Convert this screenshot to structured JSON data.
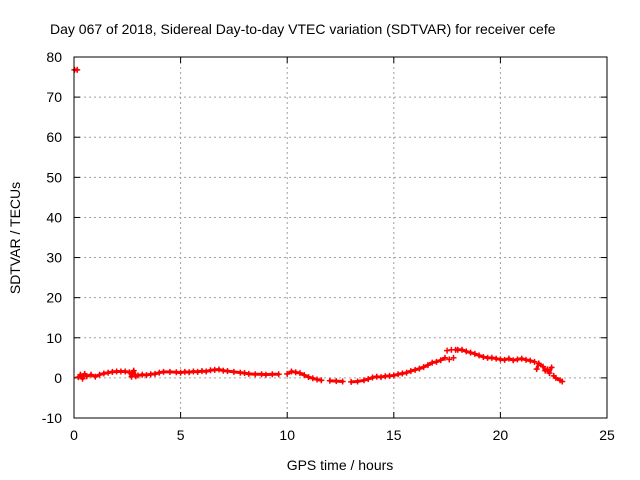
{
  "chart_data": {
    "type": "scatter",
    "title": "Day 067 of 2018, Sidereal Day-to-day VTEC variation (SDTVAR) for receiver cefe",
    "xlabel": "GPS time / hours",
    "ylabel": "SDTVAR / TECUs",
    "xlim": [
      0,
      25
    ],
    "ylim": [
      -10,
      80
    ],
    "grid": true,
    "x_ticks": [
      0,
      5,
      10,
      15,
      20,
      25
    ],
    "y_ticks": [
      -10,
      0,
      10,
      20,
      30,
      40,
      50,
      60,
      70,
      80
    ],
    "x_tick_labels": [
      "0",
      "5",
      "10",
      "15",
      "20",
      "25"
    ],
    "y_tick_labels": [
      "-10",
      "0",
      "10",
      "20",
      "30",
      "40",
      "50",
      "60",
      "70",
      "80"
    ],
    "series_color": "#ff0000",
    "series": [
      {
        "name": "SDTVAR",
        "points": [
          [
            0.02,
            76.8
          ],
          [
            0.15,
            76.8
          ],
          [
            0.2,
            0.2
          ],
          [
            0.3,
            0.8
          ],
          [
            0.4,
            -0.2
          ],
          [
            0.5,
            1.0
          ],
          [
            0.6,
            0.4
          ],
          [
            0.8,
            0.8
          ],
          [
            1.0,
            0.3
          ],
          [
            1.2,
            0.8
          ],
          [
            1.4,
            1.1
          ],
          [
            1.6,
            1.3
          ],
          [
            1.8,
            1.5
          ],
          [
            2.0,
            1.6
          ],
          [
            2.2,
            1.6
          ],
          [
            2.4,
            1.6
          ],
          [
            2.6,
            1.4
          ],
          [
            2.7,
            0.3
          ],
          [
            2.8,
            1.8
          ],
          [
            2.9,
            0.4
          ],
          [
            3.0,
            0.6
          ],
          [
            3.2,
            0.8
          ],
          [
            3.4,
            0.7
          ],
          [
            3.6,
            0.9
          ],
          [
            3.8,
            1.0
          ],
          [
            4.0,
            1.3
          ],
          [
            4.2,
            1.5
          ],
          [
            4.5,
            1.5
          ],
          [
            4.8,
            1.4
          ],
          [
            5.0,
            1.3
          ],
          [
            5.2,
            1.5
          ],
          [
            5.4,
            1.4
          ],
          [
            5.6,
            1.6
          ],
          [
            5.8,
            1.5
          ],
          [
            6.0,
            1.7
          ],
          [
            6.2,
            1.6
          ],
          [
            6.4,
            1.9
          ],
          [
            6.6,
            2.0
          ],
          [
            6.8,
            2.1
          ],
          [
            7.0,
            1.8
          ],
          [
            7.2,
            1.7
          ],
          [
            7.5,
            1.5
          ],
          [
            7.8,
            1.3
          ],
          [
            8.0,
            1.2
          ],
          [
            8.2,
            1.0
          ],
          [
            8.5,
            0.9
          ],
          [
            8.8,
            0.9
          ],
          [
            9.0,
            0.8
          ],
          [
            9.3,
            0.9
          ],
          [
            9.6,
            0.9
          ],
          [
            10.0,
            1.0
          ],
          [
            10.2,
            1.6
          ],
          [
            10.4,
            1.4
          ],
          [
            10.6,
            1.2
          ],
          [
            10.8,
            0.7
          ],
          [
            11.0,
            0.2
          ],
          [
            11.2,
            -0.1
          ],
          [
            11.4,
            -0.4
          ],
          [
            11.6,
            -0.6
          ],
          [
            12.0,
            -0.7
          ],
          [
            12.3,
            -0.8
          ],
          [
            12.6,
            -0.9
          ],
          [
            13.0,
            -1.0
          ],
          [
            13.3,
            -0.9
          ],
          [
            13.6,
            -0.6
          ],
          [
            13.8,
            -0.3
          ],
          [
            14.0,
            0.1
          ],
          [
            14.2,
            0.3
          ],
          [
            14.4,
            0.2
          ],
          [
            14.6,
            0.4
          ],
          [
            14.8,
            0.5
          ],
          [
            15.0,
            0.6
          ],
          [
            15.2,
            0.9
          ],
          [
            15.4,
            1.1
          ],
          [
            15.6,
            1.3
          ],
          [
            15.8,
            1.7
          ],
          [
            16.0,
            2.0
          ],
          [
            16.2,
            2.3
          ],
          [
            16.4,
            2.7
          ],
          [
            16.6,
            3.2
          ],
          [
            16.8,
            3.8
          ],
          [
            17.0,
            4.0
          ],
          [
            17.2,
            4.4
          ],
          [
            17.4,
            5.0
          ],
          [
            17.5,
            6.8
          ],
          [
            17.6,
            4.6
          ],
          [
            17.7,
            7.0
          ],
          [
            17.8,
            5.0
          ],
          [
            17.9,
            7.0
          ],
          [
            18.0,
            7.0
          ],
          [
            18.2,
            7.0
          ],
          [
            18.4,
            6.6
          ],
          [
            18.6,
            6.3
          ],
          [
            18.8,
            6.0
          ],
          [
            19.0,
            5.6
          ],
          [
            19.2,
            5.2
          ],
          [
            19.4,
            5.0
          ],
          [
            19.6,
            5.0
          ],
          [
            19.8,
            4.8
          ],
          [
            20.0,
            4.6
          ],
          [
            20.2,
            4.5
          ],
          [
            20.4,
            4.8
          ],
          [
            20.6,
            4.4
          ],
          [
            20.8,
            4.6
          ],
          [
            21.0,
            4.8
          ],
          [
            21.2,
            4.5
          ],
          [
            21.4,
            4.3
          ],
          [
            21.6,
            4.0
          ],
          [
            21.7,
            2.2
          ],
          [
            21.8,
            3.6
          ],
          [
            22.0,
            2.8
          ],
          [
            22.1,
            1.8
          ],
          [
            22.2,
            2.1
          ],
          [
            22.3,
            1.2
          ],
          [
            22.4,
            2.6
          ],
          [
            22.5,
            0.5
          ],
          [
            22.6,
            0.0
          ],
          [
            22.8,
            -0.6
          ],
          [
            22.9,
            -0.9
          ]
        ]
      }
    ]
  }
}
